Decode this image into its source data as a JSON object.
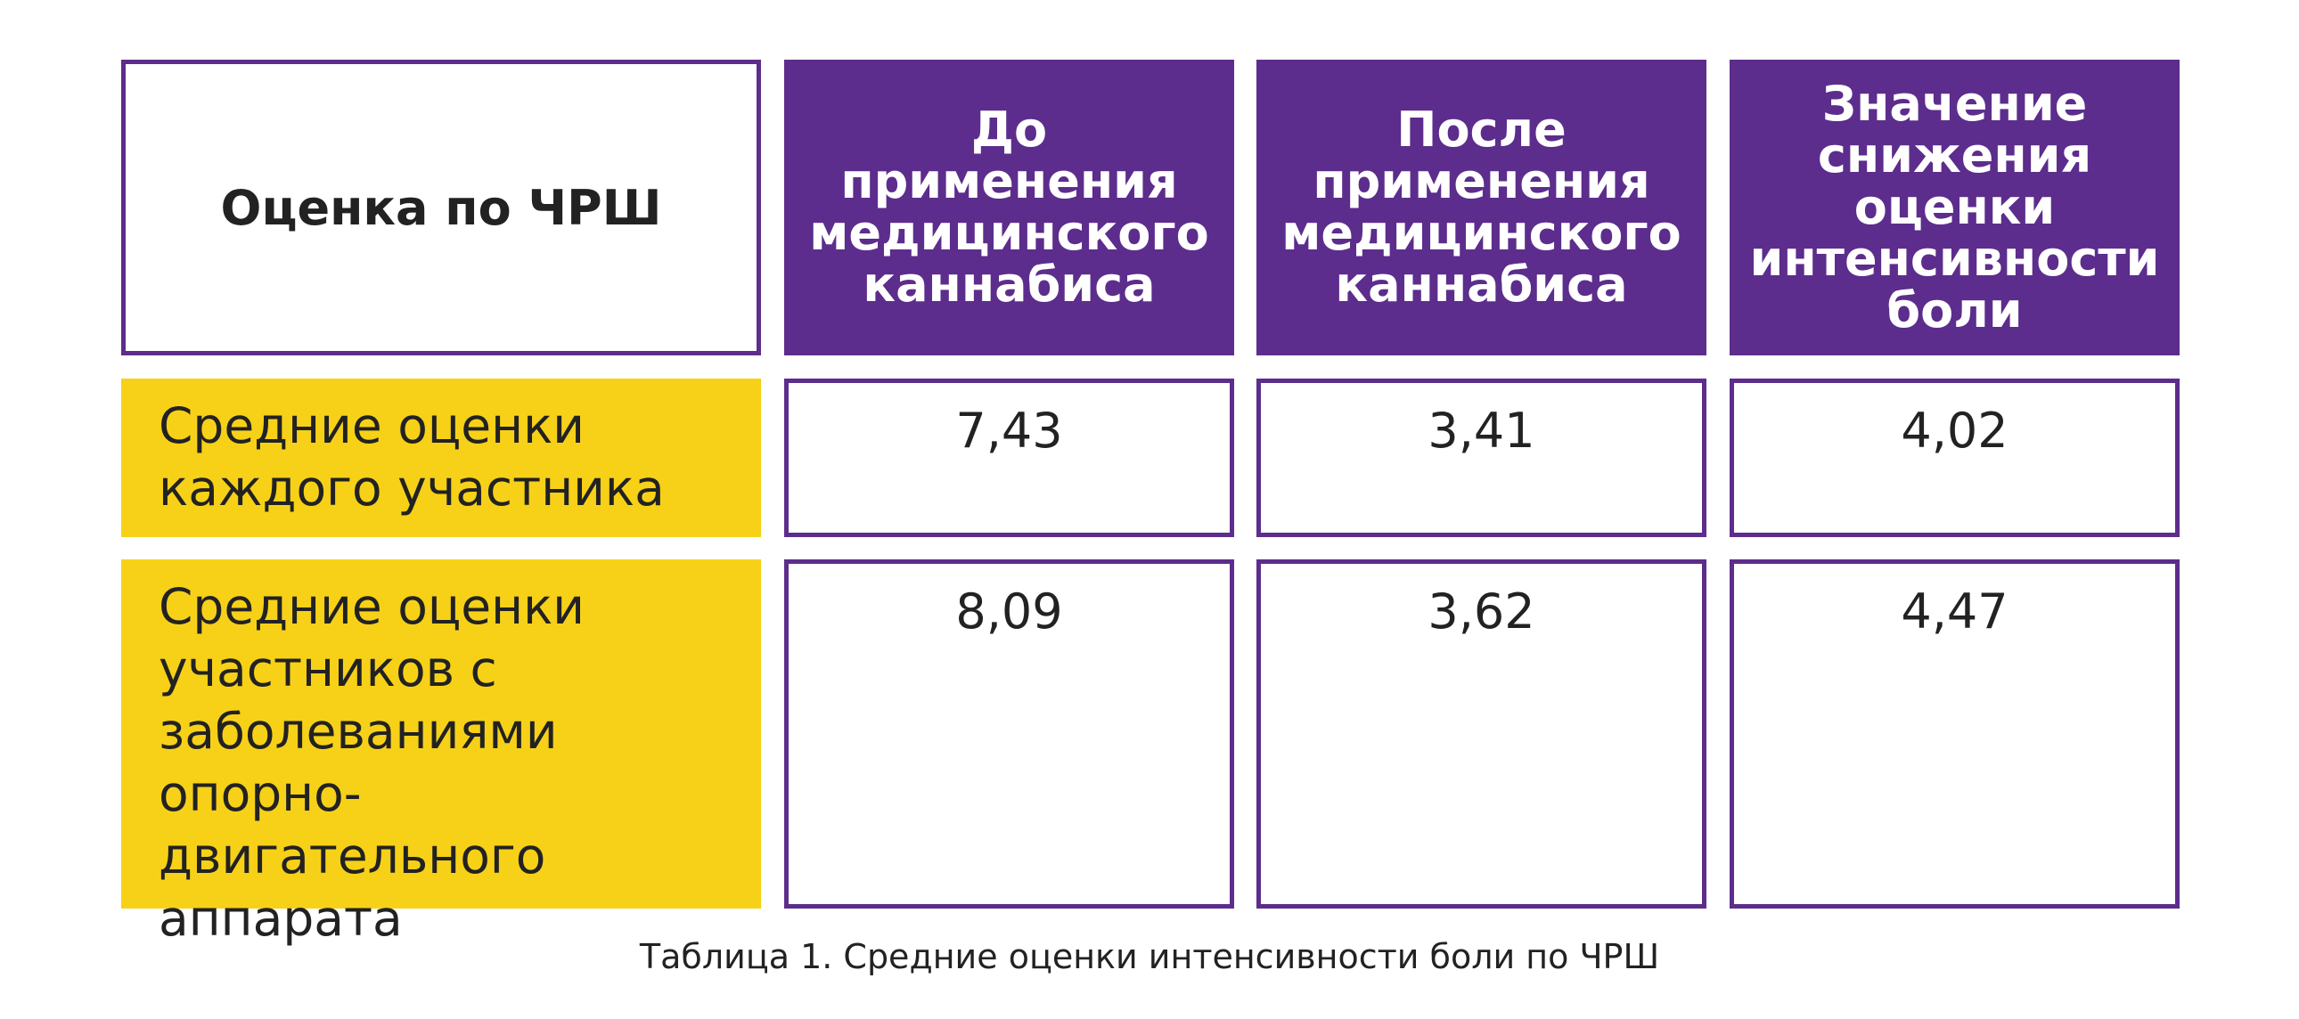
{
  "table": {
    "header": {
      "first": "Оценка по ЧРШ",
      "columns": [
        "До применения медицинского каннабиса",
        "После применения медицинского каннабиса",
        "Значение снижения оценки интенсивности боли"
      ]
    },
    "rows": [
      {
        "label": "Средние оценки каждого участника",
        "values": [
          "7,43",
          "3,41",
          "4,02"
        ]
      },
      {
        "label": "Средние оценки участников с заболеваниями опорно-двигательного аппарата",
        "values": [
          "8,09",
          "3,62",
          "4,47"
        ]
      }
    ]
  },
  "caption": "Таблица 1. Средние оценки интенсивности боли по ЧРШ",
  "colors": {
    "accent_purple": "#5c2d8c",
    "accent_yellow": "#f7d117"
  }
}
